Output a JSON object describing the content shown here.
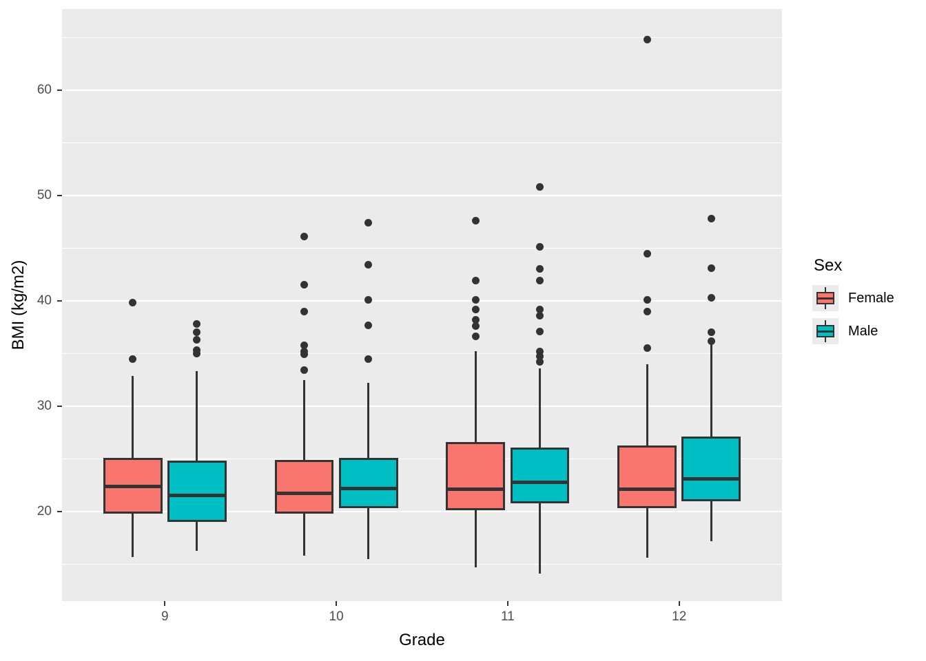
{
  "figure": {
    "background": "#FFFFFF",
    "panel_background": "#EBEBEB",
    "gridline_color": "#FFFFFF",
    "box_outline_color": "#333333",
    "outlier_color": "#333333",
    "axis_text_color": "#4D4D4D",
    "axis_title_color": "#000000"
  },
  "axes": {
    "x_title": "Grade",
    "y_title": "BMI (kg/m2)",
    "x_tick_labels": [
      "9",
      "10",
      "11",
      "12"
    ],
    "y_tick_labels": [
      "20",
      "30",
      "40",
      "50",
      "60"
    ]
  },
  "legend": {
    "title": "Sex",
    "entries": [
      {
        "label": "Female",
        "color": "#F8766D"
      },
      {
        "label": "Male",
        "color": "#00BFC4"
      }
    ]
  },
  "chart_data": {
    "type": "boxplot",
    "title": "",
    "xlabel": "Grade",
    "ylabel": "BMI (kg/m2)",
    "categories": [
      "9",
      "10",
      "11",
      "12"
    ],
    "ylim": [
      11.5,
      67.7
    ],
    "y_major_gridlines": [
      20,
      30,
      40,
      50,
      60
    ],
    "y_minor_gridlines": [
      15,
      25,
      35,
      45,
      55,
      65
    ],
    "grid": true,
    "legend_position": "right",
    "series": [
      {
        "name": "Female",
        "color": "#F8766D",
        "boxes": [
          {
            "category": "9",
            "whisker_low": 15.7,
            "q1": 19.8,
            "median": 22.4,
            "q3": 25.1,
            "whisker_high": 32.9,
            "outliers": [
              34.5,
              39.8
            ]
          },
          {
            "category": "10",
            "whisker_low": 15.8,
            "q1": 19.8,
            "median": 21.7,
            "q3": 24.9,
            "whisker_high": 32.5,
            "outliers": [
              33.4,
              34.9,
              35.2,
              35.8,
              39.0,
              41.5,
              46.1
            ]
          },
          {
            "category": "11",
            "whisker_low": 14.7,
            "q1": 20.1,
            "median": 22.1,
            "q3": 26.6,
            "whisker_high": 35.2,
            "outliers": [
              36.6,
              37.6,
              38.2,
              39.2,
              40.1,
              41.9,
              47.6
            ]
          },
          {
            "category": "12",
            "whisker_low": 15.6,
            "q1": 20.3,
            "median": 22.1,
            "q3": 26.3,
            "whisker_high": 34.0,
            "outliers": [
              35.5,
              39.0,
              40.1,
              44.5,
              64.8
            ]
          }
        ]
      },
      {
        "name": "Male",
        "color": "#00BFC4",
        "boxes": [
          {
            "category": "9",
            "whisker_low": 16.3,
            "q1": 19.0,
            "median": 21.5,
            "q3": 24.8,
            "whisker_high": 33.3,
            "outliers": [
              35.0,
              35.3,
              36.3,
              37.0,
              37.8
            ]
          },
          {
            "category": "10",
            "whisker_low": 15.5,
            "q1": 20.3,
            "median": 22.2,
            "q3": 25.1,
            "whisker_high": 32.2,
            "outliers": [
              34.5,
              37.7,
              40.1,
              43.4,
              47.4
            ]
          },
          {
            "category": "11",
            "whisker_low": 14.1,
            "q1": 20.8,
            "median": 22.8,
            "q3": 26.1,
            "whisker_high": 33.6,
            "outliers": [
              34.2,
              34.7,
              35.2,
              37.1,
              38.6,
              39.2,
              41.9,
              43.0,
              45.1,
              50.8
            ]
          },
          {
            "category": "12",
            "whisker_low": 17.2,
            "q1": 21.0,
            "median": 23.1,
            "q3": 27.1,
            "whisker_high": 35.9,
            "outliers": [
              36.2,
              37.0,
              40.3,
              43.1,
              47.8
            ]
          }
        ]
      }
    ]
  }
}
